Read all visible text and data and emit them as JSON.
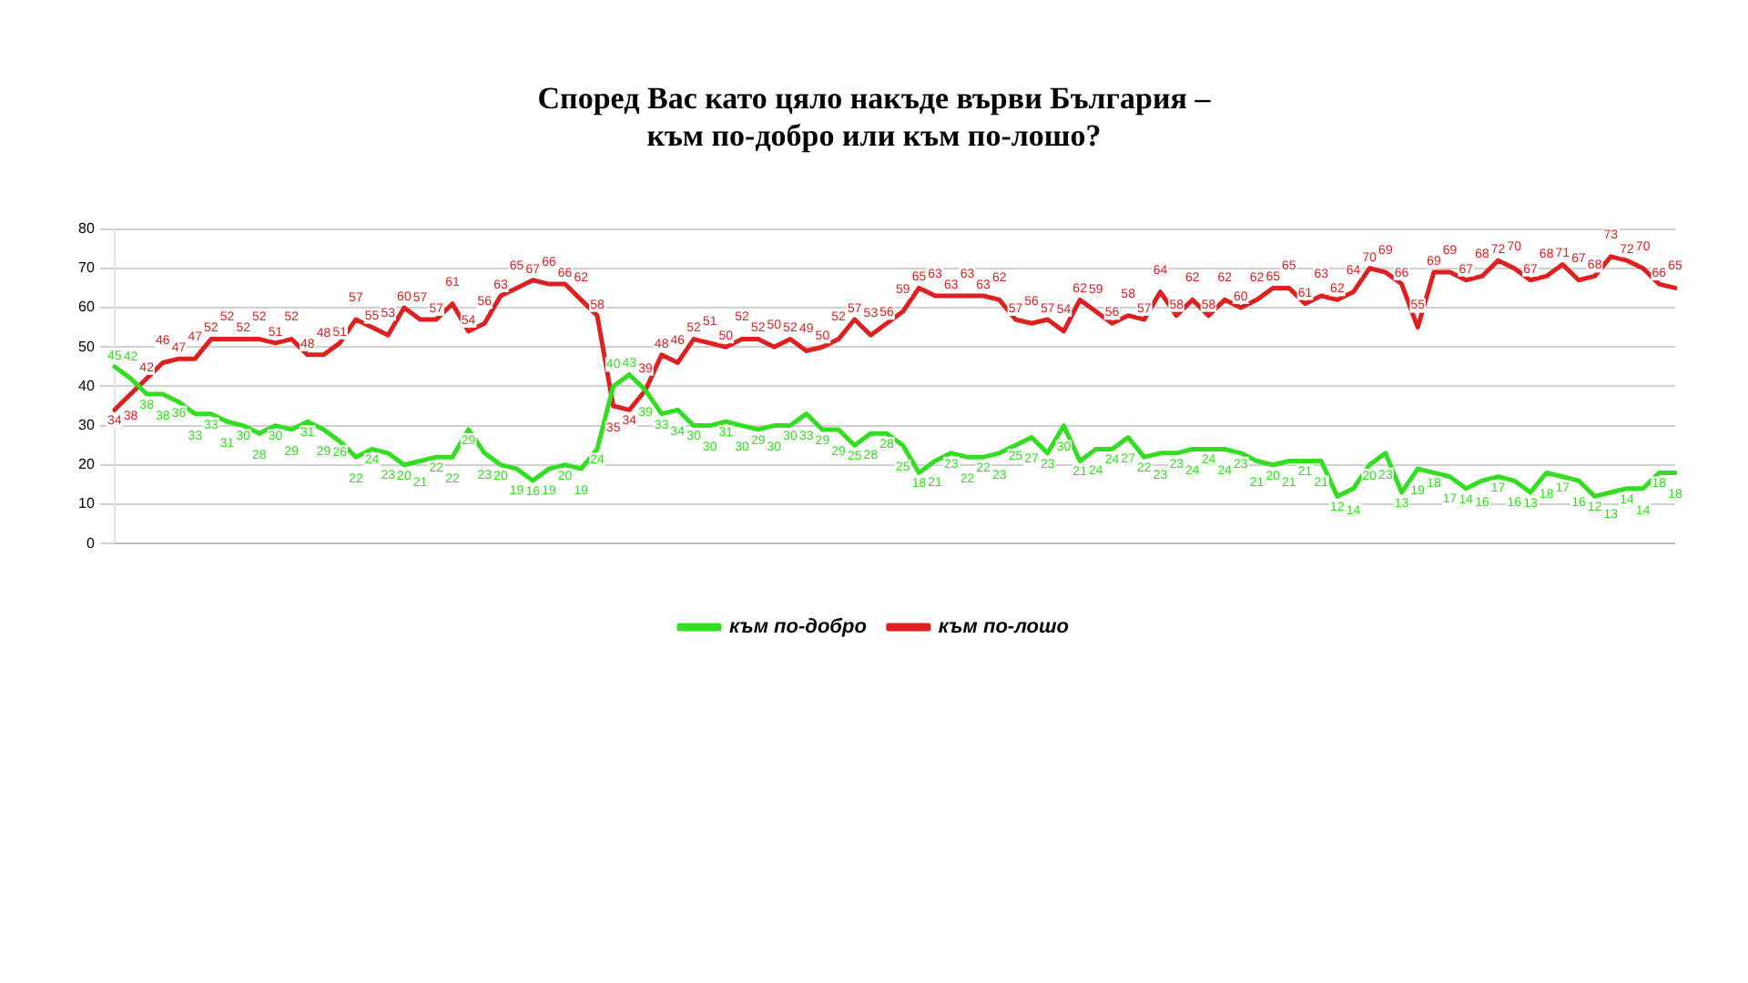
{
  "chart_data": {
    "type": "line",
    "title": "Според Вас като цяло накъде върви България –\nкъм по-добро или към по-лошо?",
    "categories": [
      null,
      null,
      null,
      null,
      null,
      null,
      null,
      null,
      null,
      null,
      null,
      null,
      null,
      null,
      null,
      null,
      null,
      null,
      null,
      null,
      null,
      null,
      null,
      null,
      null,
      null,
      null,
      null,
      null,
      null,
      null,
      null,
      null,
      null,
      null,
      null,
      null,
      null,
      null,
      null,
      null,
      null,
      null,
      null,
      null,
      null,
      null,
      null,
      null,
      null,
      null,
      null,
      null,
      null,
      null,
      null,
      null,
      null,
      null,
      null,
      null,
      null,
      null,
      null,
      null,
      null,
      null,
      null,
      null,
      null,
      null,
      null,
      null,
      null,
      null,
      null,
      null,
      null,
      null,
      null,
      null,
      null,
      null,
      null,
      null,
      null,
      null,
      null,
      null,
      null,
      null,
      null,
      null,
      null,
      null,
      null,
      null,
      null
    ],
    "series": [
      {
        "name": "към по-добро",
        "color": "#33dd22",
        "values": [
          45,
          42,
          38,
          38,
          36,
          33,
          33,
          31,
          30,
          28,
          30,
          29,
          31,
          29,
          26,
          22,
          24,
          23,
          20,
          21,
          22,
          22,
          29,
          23,
          20,
          19,
          16,
          19,
          20,
          19,
          24,
          40,
          43,
          39,
          33,
          34,
          30,
          30,
          31,
          30,
          29,
          30,
          30,
          33,
          29,
          29,
          25,
          28,
          28,
          25,
          18,
          21,
          23,
          22,
          22,
          23,
          25,
          27,
          23,
          30,
          21,
          24,
          24,
          27,
          22,
          23,
          23,
          24,
          24,
          24,
          23,
          21,
          20,
          21,
          21,
          21,
          12,
          14,
          20,
          23,
          13,
          19,
          18,
          17,
          14,
          16,
          17,
          16,
          13,
          18,
          17,
          16,
          12,
          13,
          14,
          14,
          18,
          18
        ]
      },
      {
        "name": "към по-лошо",
        "color": "#dd2020",
        "values": [
          34,
          38,
          42,
          46,
          47,
          47,
          52,
          52,
          52,
          52,
          51,
          52,
          48,
          48,
          51,
          57,
          55,
          53,
          60,
          57,
          57,
          61,
          54,
          56,
          63,
          65,
          67,
          66,
          66,
          62,
          58,
          35,
          34,
          39,
          48,
          46,
          52,
          51,
          50,
          52,
          52,
          50,
          52,
          49,
          50,
          52,
          57,
          53,
          56,
          59,
          65,
          63,
          63,
          63,
          63,
          62,
          57,
          56,
          57,
          54,
          62,
          59,
          56,
          58,
          57,
          64,
          58,
          62,
          58,
          62,
          60,
          62,
          65,
          65,
          61,
          63,
          62,
          64,
          70,
          69,
          66,
          55,
          69,
          69,
          67,
          68,
          72,
          70,
          67,
          68,
          71,
          67,
          68,
          73,
          72,
          70,
          66,
          65
        ]
      }
    ],
    "ylim": [
      0,
      80
    ],
    "yticks": [
      0,
      10,
      20,
      30,
      40,
      50,
      60,
      70,
      80
    ],
    "grid": "y",
    "legend": "bottom",
    "data_labels": true,
    "marker": "none",
    "line_style": "solid"
  }
}
